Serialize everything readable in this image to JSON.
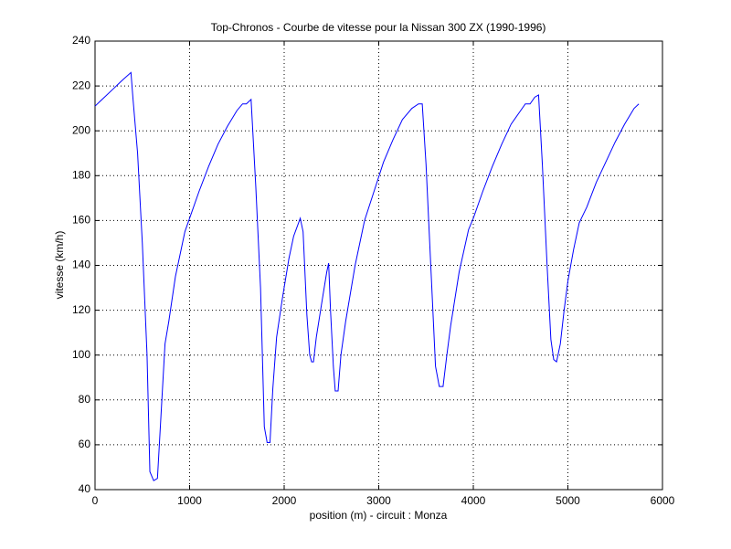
{
  "chart_data": {
    "type": "line",
    "title": "Top-Chronos - Courbe de vitesse pour la Nissan 300 ZX (1990-1996)",
    "xlabel": "position (m) - circuit : Monza",
    "ylabel": "vitesse (km/h)",
    "x": [
      0,
      50,
      100,
      200,
      300,
      380,
      400,
      450,
      500,
      550,
      580,
      620,
      660,
      700,
      740,
      780,
      850,
      950,
      1000,
      1100,
      1200,
      1300,
      1400,
      1500,
      1560,
      1600,
      1650,
      1700,
      1750,
      1790,
      1820,
      1850,
      1880,
      1920,
      1980,
      2050,
      2100,
      2170,
      2200,
      2240,
      2270,
      2290,
      2310,
      2340,
      2400,
      2450,
      2470,
      2490,
      2520,
      2540,
      2570,
      2600,
      2650,
      2750,
      2850,
      2950,
      3050,
      3150,
      3250,
      3350,
      3420,
      3460,
      3500,
      3550,
      3600,
      3640,
      3680,
      3720,
      3760,
      3850,
      3950,
      4000,
      4100,
      4200,
      4300,
      4400,
      4500,
      4550,
      4600,
      4650,
      4690,
      4730,
      4780,
      4820,
      4850,
      4880,
      4920,
      4960,
      5000,
      5060,
      5120,
      5200,
      5300,
      5400,
      5500,
      5600,
      5700,
      5750
    ],
    "values": [
      211,
      213,
      215,
      219,
      223,
      226,
      215,
      190,
      150,
      100,
      48,
      44,
      45,
      75,
      105,
      115,
      135,
      155,
      161,
      173,
      184,
      194,
      202,
      209,
      212,
      212,
      214,
      175,
      130,
      68,
      61,
      61,
      85,
      108,
      125,
      143,
      153,
      161,
      155,
      118,
      100,
      97,
      97,
      108,
      124,
      137,
      141,
      120,
      95,
      84,
      84,
      100,
      115,
      140,
      160,
      173,
      186,
      196,
      205,
      210,
      212,
      212,
      185,
      140,
      95,
      86,
      86,
      100,
      113,
      137,
      156,
      161,
      173,
      184,
      194,
      203,
      209,
      212,
      212,
      215,
      216,
      185,
      140,
      107,
      98,
      97,
      105,
      120,
      133,
      147,
      159,
      166,
      177,
      186,
      195,
      203,
      210,
      212
    ],
    "color": "#0000ff",
    "xlim": [
      0,
      6000
    ],
    "xticks": [
      0,
      1000,
      2000,
      3000,
      4000,
      5000,
      6000
    ],
    "ylim": [
      40,
      240
    ],
    "yticks": [
      40,
      60,
      80,
      100,
      120,
      140,
      160,
      180,
      200,
      220,
      240
    ],
    "grid": true
  }
}
